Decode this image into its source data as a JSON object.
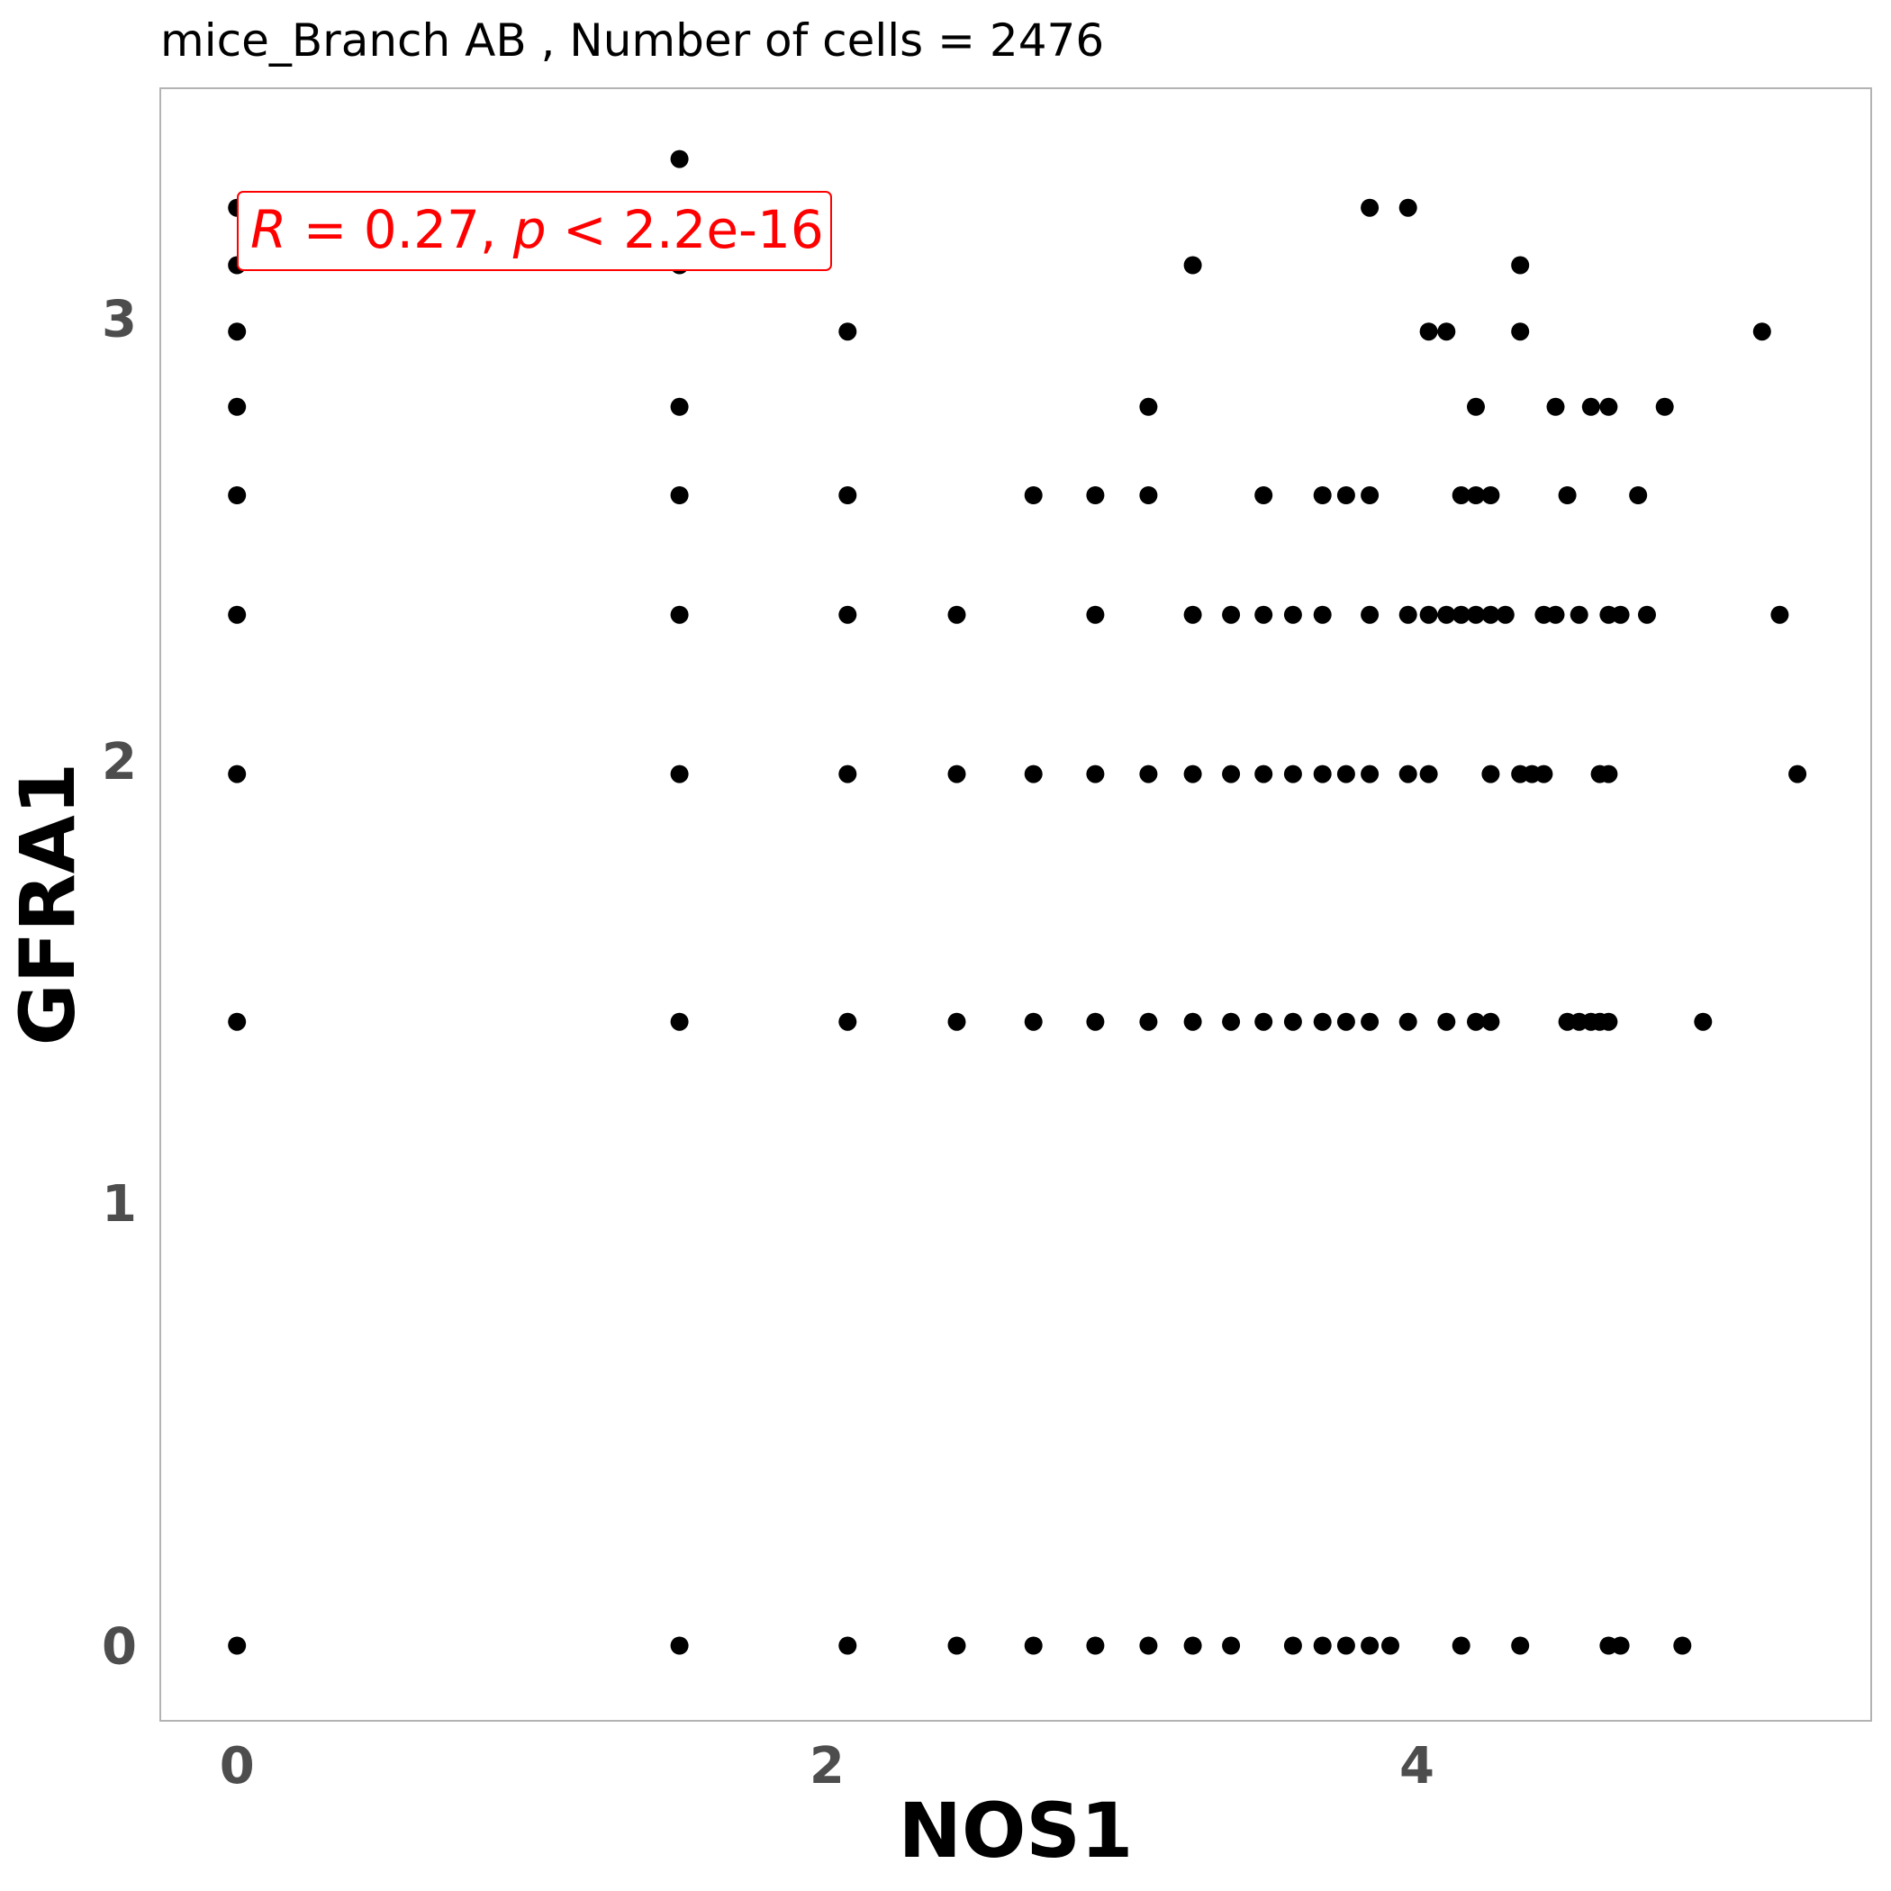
{
  "chart_data": {
    "type": "scatter",
    "title": "mice_Branch AB , Number of cells =  2476",
    "xlabel": "NOS1",
    "ylabel": "GFRA1",
    "xlim": [
      -0.26,
      5.54
    ],
    "ylim": [
      -0.17,
      3.52
    ],
    "x_ticks": [
      0,
      2,
      4
    ],
    "y_ticks": [
      0,
      1,
      2,
      3
    ],
    "grid": false,
    "point_color": "#000000",
    "annotation": {
      "r_symbol": "R",
      "r_text": " = 0.27, ",
      "p_symbol": "p",
      "p_text": " < 2.2e-16",
      "color": "#ff0000",
      "position": "top-left"
    },
    "points": [
      [
        0,
        0
      ],
      [
        0,
        1.41
      ],
      [
        0,
        1.97
      ],
      [
        0,
        2.33
      ],
      [
        0,
        2.6
      ],
      [
        0,
        2.8
      ],
      [
        0,
        2.97
      ],
      [
        0,
        3.12
      ],
      [
        0,
        3.25
      ],
      [
        1.5,
        0
      ],
      [
        1.5,
        1.41
      ],
      [
        1.5,
        1.97
      ],
      [
        1.5,
        2.33
      ],
      [
        1.5,
        2.6
      ],
      [
        1.5,
        2.8
      ],
      [
        1.5,
        3.12
      ],
      [
        1.5,
        3.36
      ],
      [
        2.07,
        0
      ],
      [
        2.07,
        1.41
      ],
      [
        2.07,
        1.97
      ],
      [
        2.07,
        2.33
      ],
      [
        2.07,
        2.6
      ],
      [
        2.07,
        2.97
      ],
      [
        2.44,
        0
      ],
      [
        2.44,
        1.41
      ],
      [
        2.44,
        1.97
      ],
      [
        2.44,
        2.33
      ],
      [
        2.7,
        0
      ],
      [
        2.7,
        1.41
      ],
      [
        2.7,
        1.97
      ],
      [
        2.7,
        2.6
      ],
      [
        2.91,
        0
      ],
      [
        2.91,
        1.41
      ],
      [
        2.91,
        1.97
      ],
      [
        2.91,
        2.33
      ],
      [
        2.91,
        2.6
      ],
      [
        3.09,
        0
      ],
      [
        3.09,
        1.41
      ],
      [
        3.09,
        1.97
      ],
      [
        3.09,
        2.6
      ],
      [
        3.09,
        2.8
      ],
      [
        3.24,
        0
      ],
      [
        3.24,
        1.41
      ],
      [
        3.24,
        1.97
      ],
      [
        3.24,
        2.33
      ],
      [
        3.24,
        3.12
      ],
      [
        3.37,
        0
      ],
      [
        3.37,
        1.41
      ],
      [
        3.37,
        1.97
      ],
      [
        3.37,
        2.33
      ],
      [
        3.48,
        1.41
      ],
      [
        3.48,
        1.97
      ],
      [
        3.48,
        2.33
      ],
      [
        3.48,
        2.6
      ],
      [
        3.58,
        0
      ],
      [
        3.58,
        1.41
      ],
      [
        3.58,
        1.97
      ],
      [
        3.58,
        2.33
      ],
      [
        3.68,
        0
      ],
      [
        3.68,
        1.41
      ],
      [
        3.68,
        1.97
      ],
      [
        3.68,
        2.33
      ],
      [
        3.68,
        2.6
      ],
      [
        3.76,
        0
      ],
      [
        3.76,
        1.41
      ],
      [
        3.76,
        1.97
      ],
      [
        3.76,
        2.6
      ],
      [
        3.84,
        0
      ],
      [
        3.84,
        1.41
      ],
      [
        3.84,
        1.97
      ],
      [
        3.84,
        2.33
      ],
      [
        3.84,
        2.6
      ],
      [
        3.84,
        3.25
      ],
      [
        3.91,
        0
      ],
      [
        3.97,
        1.41
      ],
      [
        3.97,
        1.97
      ],
      [
        3.97,
        2.33
      ],
      [
        3.97,
        3.25
      ],
      [
        4.04,
        1.97
      ],
      [
        4.04,
        2.33
      ],
      [
        4.04,
        2.97
      ],
      [
        4.1,
        1.41
      ],
      [
        4.1,
        2.33
      ],
      [
        4.1,
        2.97
      ],
      [
        4.15,
        0
      ],
      [
        4.15,
        2.33
      ],
      [
        4.15,
        2.6
      ],
      [
        4.2,
        1.41
      ],
      [
        4.2,
        2.33
      ],
      [
        4.2,
        2.6
      ],
      [
        4.2,
        2.8
      ],
      [
        4.25,
        1.41
      ],
      [
        4.25,
        1.97
      ],
      [
        4.25,
        2.33
      ],
      [
        4.25,
        2.6
      ],
      [
        4.3,
        2.33
      ],
      [
        4.35,
        0
      ],
      [
        4.35,
        1.97
      ],
      [
        4.35,
        2.97
      ],
      [
        4.35,
        3.12
      ],
      [
        4.39,
        1.97
      ],
      [
        4.43,
        1.97
      ],
      [
        4.43,
        2.33
      ],
      [
        4.47,
        2.33
      ],
      [
        4.47,
        2.8
      ],
      [
        4.51,
        1.41
      ],
      [
        4.51,
        2.6
      ],
      [
        4.55,
        1.41
      ],
      [
        4.55,
        2.33
      ],
      [
        4.59,
        1.41
      ],
      [
        4.59,
        2.8
      ],
      [
        4.62,
        1.41
      ],
      [
        4.62,
        1.97
      ],
      [
        4.65,
        0
      ],
      [
        4.65,
        1.41
      ],
      [
        4.65,
        1.97
      ],
      [
        4.65,
        2.33
      ],
      [
        4.65,
        2.8
      ],
      [
        4.69,
        0
      ],
      [
        4.69,
        2.33
      ],
      [
        4.75,
        2.6
      ],
      [
        4.78,
        2.33
      ],
      [
        4.84,
        2.8
      ],
      [
        4.9,
        0
      ],
      [
        4.97,
        1.41
      ],
      [
        5.17,
        2.97
      ],
      [
        5.23,
        2.33
      ],
      [
        5.29,
        1.97
      ]
    ]
  }
}
